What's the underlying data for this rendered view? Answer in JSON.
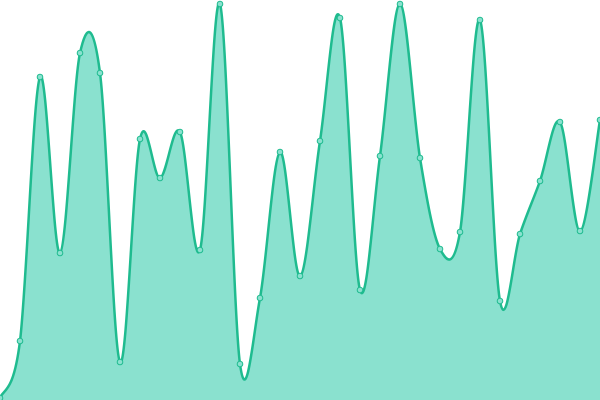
{
  "chart_data": {
    "type": "area",
    "values": [
      2,
      59,
      323,
      147,
      347,
      327,
      38,
      261,
      222,
      268,
      150,
      396,
      36,
      102,
      248,
      124,
      259,
      382,
      110,
      244,
      396,
      242,
      151,
      168,
      380,
      99,
      166,
      219,
      278,
      169,
      280
    ],
    "ylim": [
      0,
      400
    ],
    "color": "#1fbb8f",
    "fill": "#8ae1cf"
  }
}
